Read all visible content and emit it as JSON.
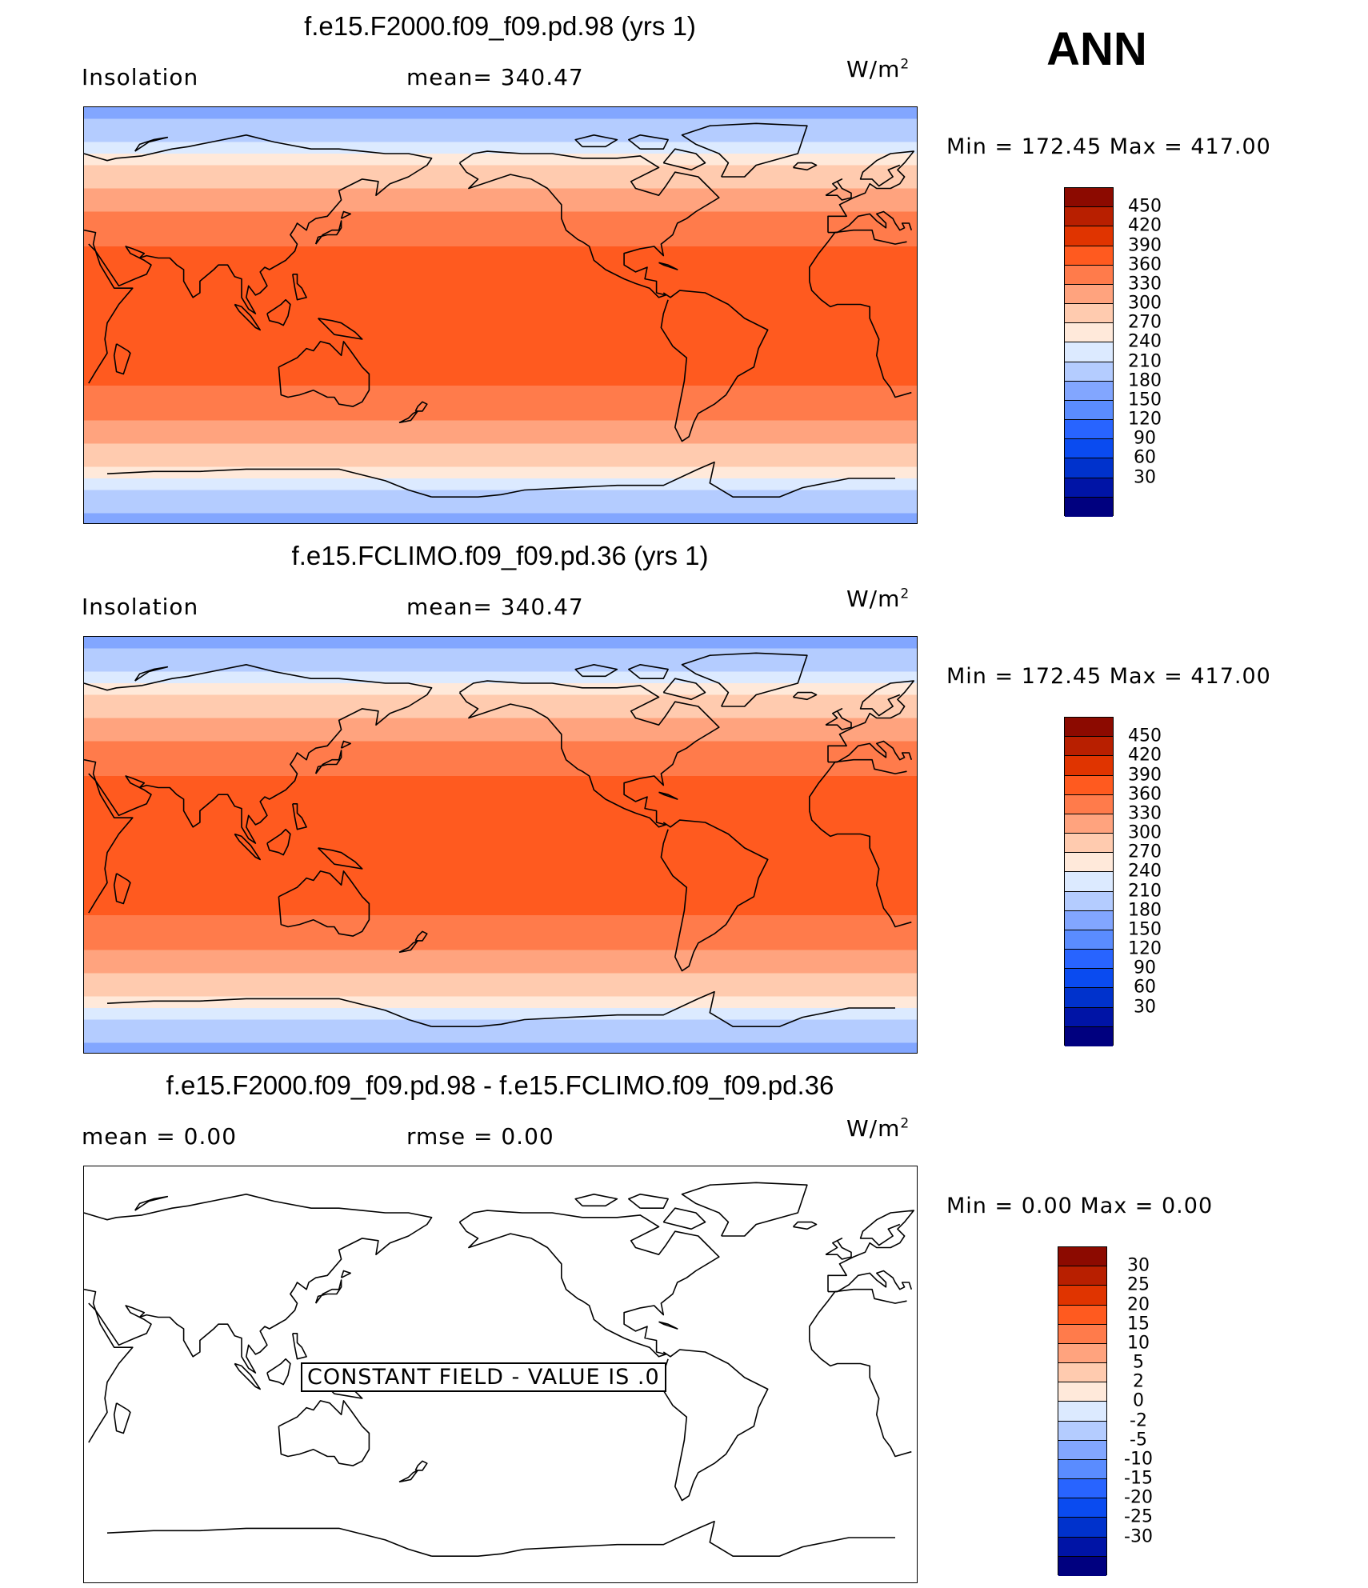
{
  "season": "ANN",
  "colors": {
    "abs": [
      "#00007f",
      "#0014a6",
      "#0032cc",
      "#0a4bf0",
      "#2864ff",
      "#5a8cff",
      "#82a6ff",
      "#b4ccff",
      "#dceaff",
      "#ffe9da",
      "#ffcbaf",
      "#ffa37e",
      "#ff7b4b",
      "#ff5a1f",
      "#e03400",
      "#b81f00",
      "#8c0a00"
    ],
    "diff": [
      "#00007f",
      "#0014a6",
      "#0032cc",
      "#0a4bf0",
      "#2864ff",
      "#5a8cff",
      "#82a6ff",
      "#b4ccff",
      "#dceaff",
      "#ffe9da",
      "#ffcbaf",
      "#ffa37e",
      "#ff7b4b",
      "#ff5a1f",
      "#e03400",
      "#b81f00",
      "#8c0a00"
    ]
  },
  "panels": [
    {
      "title": "f.e15.F2000.f09_f09.pd.98 (yrs 1)",
      "left_label": "Insolation",
      "center_label": "mean= 340.47",
      "units": "W/m",
      "units_exp": "2",
      "minmax": "Min  =  172.45  Max  =  417.00"
    },
    {
      "title": "f.e15.FCLIMO.f09_f09.pd.36 (yrs 1)",
      "left_label": "Insolation",
      "center_label": "mean= 340.47",
      "units": "W/m",
      "units_exp": "2",
      "minmax": "Min  =  172.45  Max  =  417.00"
    },
    {
      "title": "f.e15.F2000.f09_f09.pd.98 - f.e15.FCLIMO.f09_f09.pd.36",
      "left_label": "mean =     0.00",
      "center_label": "rmse =     0.00",
      "units": "W/m",
      "units_exp": "2",
      "minmax": "Min  =      0.00  Max  =      0.00",
      "constant_field": "CONSTANT FIELD - VALUE IS .0"
    }
  ],
  "chart_data": [
    {
      "type": "heatmap",
      "title": "f.e15.F2000.f09_f09.pd.98 (yrs 1)",
      "field": "Insolation",
      "units": "W/m2",
      "mean": 340.47,
      "min": 172.45,
      "max": 417.0,
      "colorbar_levels": [
        "30",
        "60",
        "90",
        "120",
        "150",
        "180",
        "210",
        "240",
        "270",
        "300",
        "330",
        "360",
        "390",
        "420",
        "450"
      ]
    },
    {
      "type": "heatmap",
      "title": "f.e15.FCLIMO.f09_f09.pd.36 (yrs 1)",
      "field": "Insolation",
      "units": "W/m2",
      "mean": 340.47,
      "min": 172.45,
      "max": 417.0,
      "colorbar_levels": [
        "30",
        "60",
        "90",
        "120",
        "150",
        "180",
        "210",
        "240",
        "270",
        "300",
        "330",
        "360",
        "390",
        "420",
        "450"
      ]
    },
    {
      "type": "heatmap",
      "title": "f.e15.F2000.f09_f09.pd.98 - f.e15.FCLIMO.f09_f09.pd.36",
      "units": "W/m2",
      "mean": 0.0,
      "rmse": 0.0,
      "min": 0.0,
      "max": 0.0,
      "colorbar_levels": [
        "-30",
        "-25",
        "-20",
        "-15",
        "-10",
        "-5",
        "-2",
        "0",
        "2",
        "5",
        "10",
        "15",
        "20",
        "25",
        "30"
      ]
    }
  ]
}
